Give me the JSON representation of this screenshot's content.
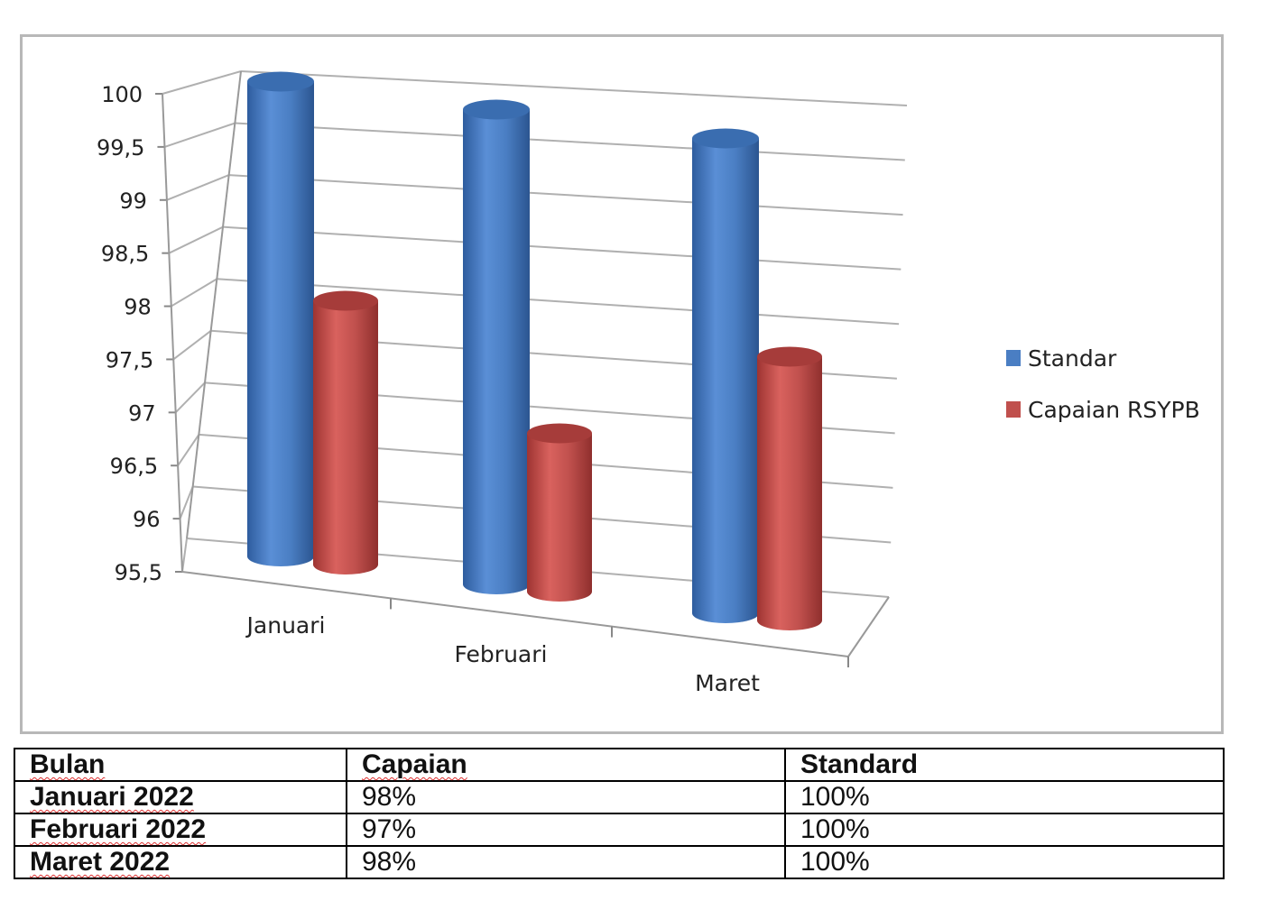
{
  "chart_data": {
    "type": "bar",
    "categories": [
      "Januari",
      "Februari",
      "Maret"
    ],
    "series": [
      {
        "name": "Standar",
        "values": [
          100,
          100,
          100
        ],
        "color": "#4a7ec3"
      },
      {
        "name": "Capaian RSYPB",
        "values": [
          98,
          97,
          98
        ],
        "color": "#c0504d"
      }
    ],
    "ylim": [
      95.5,
      100
    ],
    "y_ticks": [
      "100",
      "99,5",
      "99",
      "98,5",
      "98",
      "97,5",
      "97",
      "96,5",
      "96",
      "95,5"
    ],
    "grid": true,
    "legend": "right",
    "style": "3d-cylinder"
  },
  "table": {
    "headers": [
      "Bulan",
      "Capaian",
      "Standard"
    ],
    "rows": [
      [
        "Januari 2022",
        "98%",
        "100%"
      ],
      [
        "Februari 2022",
        "97%",
        "100%"
      ],
      [
        "Maret 2022",
        "98%",
        "100%"
      ]
    ]
  }
}
